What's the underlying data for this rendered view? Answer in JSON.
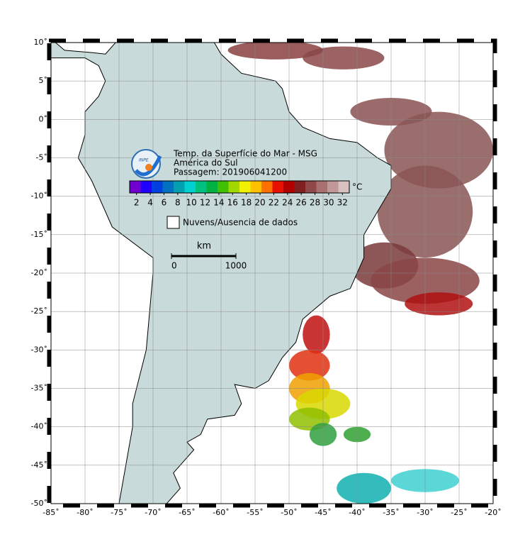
{
  "map": {
    "lon_ticks": [
      {
        "value": -85,
        "label": "-85˚"
      },
      {
        "value": -80,
        "label": "-80˚"
      },
      {
        "value": -75,
        "label": "-75˚"
      },
      {
        "value": -70,
        "label": "-70˚"
      },
      {
        "value": -65,
        "label": "-65˚"
      },
      {
        "value": -60,
        "label": "-60˚"
      },
      {
        "value": -55,
        "label": "-55˚"
      },
      {
        "value": -50,
        "label": "-50˚"
      },
      {
        "value": -45,
        "label": "-45˚"
      },
      {
        "value": -40,
        "label": "-40˚"
      },
      {
        "value": -35,
        "label": "-35˚"
      },
      {
        "value": -30,
        "label": "-30˚"
      },
      {
        "value": -25,
        "label": "-25˚"
      },
      {
        "value": -20,
        "label": "-20˚"
      }
    ],
    "lat_ticks": [
      {
        "value": 10,
        "label": "10˚"
      },
      {
        "value": 5,
        "label": "5˚"
      },
      {
        "value": 0,
        "label": "0˚"
      },
      {
        "value": -5,
        "label": "-5˚"
      },
      {
        "value": -10,
        "label": "-10˚"
      },
      {
        "value": -15,
        "label": "-15˚"
      },
      {
        "value": -20,
        "label": "-20˚"
      },
      {
        "value": -25,
        "label": "-25˚"
      },
      {
        "value": -30,
        "label": "-30˚"
      },
      {
        "value": -35,
        "label": "-35˚"
      },
      {
        "value": -40,
        "label": "-40˚"
      },
      {
        "value": -45,
        "label": "-45˚"
      },
      {
        "value": -50,
        "label": "-50˚"
      }
    ],
    "lon_range": [
      -85,
      -20
    ],
    "lat_range": [
      10,
      -50
    ],
    "legend": {
      "title": "Temp. da Superfície do Mar - MSG",
      "region": "América do Sul",
      "pass": "Passagem: 201906041200",
      "unit": "°C",
      "ticks": [
        2,
        4,
        6,
        8,
        10,
        12,
        14,
        16,
        18,
        20,
        22,
        24,
        26,
        28,
        30,
        32
      ],
      "range": [
        1,
        33
      ],
      "colors": [
        "#7000d0",
        "#2000ff",
        "#0040e0",
        "#0070c0",
        "#00a0b0",
        "#00d0d0",
        "#00c080",
        "#00b040",
        "#40c000",
        "#a0d800",
        "#f0f000",
        "#ffc000",
        "#ff7000",
        "#e81000",
        "#b00000",
        "#802020",
        "#904848",
        "#a87070",
        "#c09898",
        "#d8c0c0"
      ]
    },
    "clouds_label": "Nuvens/Ausencia de dados",
    "scale": {
      "unit": "km",
      "ticks": [
        0,
        1000
      ]
    },
    "logo": "INPE"
  }
}
